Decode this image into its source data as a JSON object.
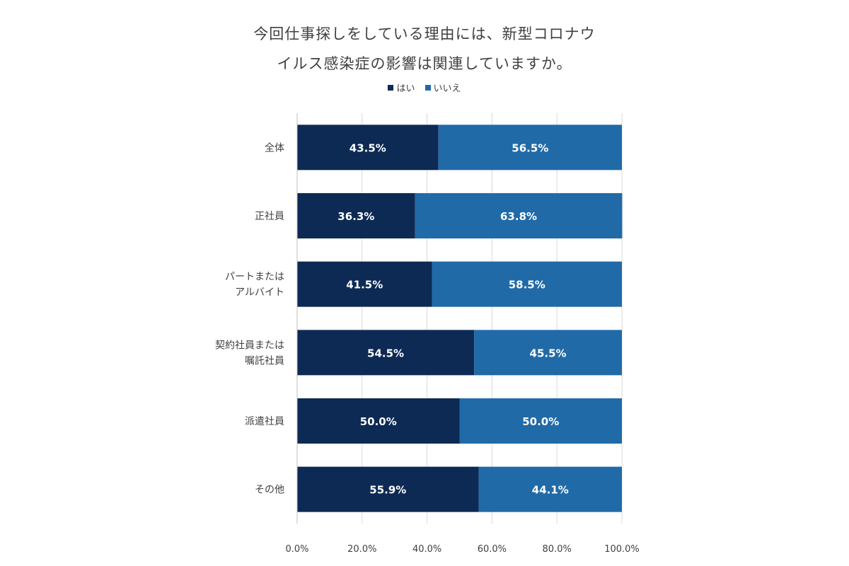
{
  "chart_data": {
    "type": "bar",
    "orientation": "horizontal",
    "stacked": true,
    "title_lines": [
      "今回仕事探しをしている理由には、新型コロナウ",
      "イルス感染症の影響は関連していますか。"
    ],
    "categories": [
      [
        "全体"
      ],
      [
        "正社員"
      ],
      [
        "パートまたは",
        "アルバイト"
      ],
      [
        "契約社員または",
        "嘱託社員"
      ],
      [
        "派遣社員"
      ],
      [
        "その他"
      ]
    ],
    "series": [
      {
        "name": "はい",
        "color": "#0d2a54",
        "values": [
          43.5,
          36.3,
          41.5,
          54.5,
          50.0,
          55.9
        ],
        "labels": [
          "43.5%",
          "36.3%",
          "41.5%",
          "54.5%",
          "50.0%",
          "55.9%"
        ]
      },
      {
        "name": "いいえ",
        "color": "#216aa8",
        "values": [
          56.5,
          63.8,
          58.5,
          45.5,
          50.0,
          44.1
        ],
        "labels": [
          "56.5%",
          "63.8%",
          "58.5%",
          "45.5%",
          "50.0%",
          "44.1%"
        ]
      }
    ],
    "xlim": [
      0,
      100
    ],
    "x_ticks": [
      "0.0%",
      "20.0%",
      "40.0%",
      "60.0%",
      "80.0%",
      "100.0%"
    ],
    "grid": true,
    "legend_position": "top-center"
  }
}
